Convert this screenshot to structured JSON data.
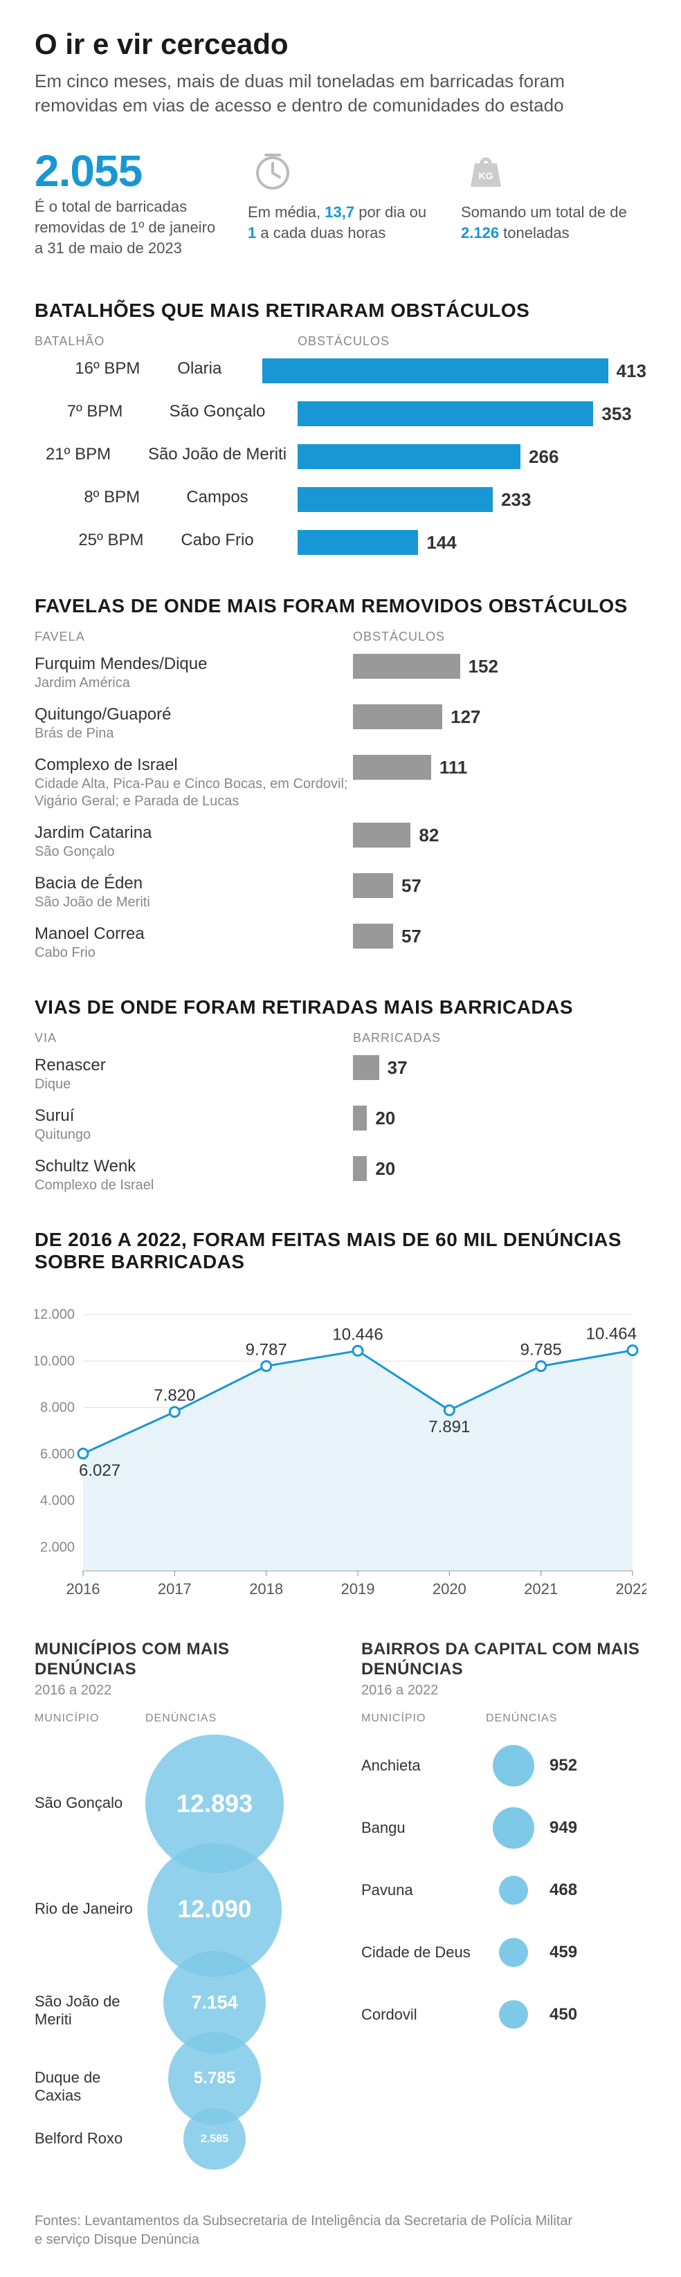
{
  "colors": {
    "accent": "#1997d4",
    "grey_bar": "#999999",
    "light_grey": "#cccccc",
    "grid": "#e0e0e0",
    "area_fill": "#e8f4fa",
    "bubble": "#7fc9e8",
    "text_muted": "#888888"
  },
  "header": {
    "title": "O ir e vir cerceado",
    "subtitle": "Em cinco meses, mais de duas mil toneladas em barricadas foram removidas em vias de acesso e dentro de comunidades do estado"
  },
  "stats": {
    "big_number": "2.055",
    "big_text": "É o total de barricadas removidas de 1º de janeiro a 31 de maio de 2023",
    "avg_pre": "Em média, ",
    "avg_v1": "13,7",
    "avg_mid1": " por dia ou ",
    "avg_v2": "1",
    "avg_mid2": " a cada duas horas",
    "weight_pre": "Somando um total de de ",
    "weight_v": "2.126",
    "weight_post": " toneladas"
  },
  "batalhoes": {
    "title": "BATALHÕES QUE MAIS RETIRARAM OBSTÁCULOS",
    "col1": "BATALHÃO",
    "col2": "OBSTÁCULOS",
    "label_width": 380,
    "bar_color": "#1997d4",
    "max": 413,
    "bar_area_width": 500,
    "rows": [
      {
        "code": "16º BPM",
        "name": "Olaria",
        "value": 413,
        "label": "413"
      },
      {
        "code": "7º BPM",
        "name": "São Gonçalo",
        "value": 353,
        "label": "353"
      },
      {
        "code": "21º BPM",
        "name": "São João de Meriti",
        "value": 266,
        "label": "266"
      },
      {
        "code": "8º BPM",
        "name": "Campos",
        "value": 233,
        "label": "233"
      },
      {
        "code": "25º BPM",
        "name": "Cabo Frio",
        "value": 144,
        "label": "144"
      }
    ]
  },
  "favelas": {
    "title": "FAVELAS DE ONDE MAIS FORAM REMOVIDOS OBSTÁCULOS",
    "col1": "FAVELA",
    "col2": "OBSTÁCULOS",
    "label_width": 460,
    "bar_color": "#999999",
    "max": 413,
    "bar_area_width": 420,
    "rows": [
      {
        "name": "Furquim Mendes/Dique",
        "sub": "Jardim América",
        "value": 152,
        "label": "152"
      },
      {
        "name": "Quitungo/Guaporé",
        "sub": "Brás de Pina",
        "value": 127,
        "label": "127"
      },
      {
        "name": "Complexo de Israel",
        "sub": "Cidade Alta, Pica-Pau e Cinco Bocas, em Cordovil; Vigário Geral; e Parada de Lucas",
        "value": 111,
        "label": "111"
      },
      {
        "name": "Jardim Catarina",
        "sub": "São Gonçalo",
        "value": 82,
        "label": "82"
      },
      {
        "name": "Bacia de Éden",
        "sub": "São João de Meriti",
        "value": 57,
        "label": "57"
      },
      {
        "name": "Manoel Correa",
        "sub": "Cabo Frio",
        "value": 57,
        "label": "57"
      }
    ]
  },
  "vias": {
    "title": "VIAS DE ONDE FORAM RETIRADAS MAIS BARRICADAS",
    "col1": "VIA",
    "col2": "BARRICADAS",
    "label_width": 460,
    "bar_color": "#999999",
    "max": 413,
    "bar_area_width": 420,
    "rows": [
      {
        "name": "Renascer",
        "sub": "Dique",
        "value": 37,
        "label": "37"
      },
      {
        "name": "Suruí",
        "sub": "Quitungo",
        "value": 20,
        "label": "20"
      },
      {
        "name": "Schultz Wenk",
        "sub": "Complexo de Israel",
        "value": 20,
        "label": "20"
      }
    ]
  },
  "line_chart": {
    "title": "DE 2016 A 2022, FORAM FEITAS MAIS DE 60 MIL DENÚNCIAS SOBRE BARRICADAS",
    "years": [
      "2016",
      "2017",
      "2018",
      "2019",
      "2020",
      "2021",
      "2022"
    ],
    "values": [
      6027,
      7820,
      9787,
      10446,
      7891,
      9785,
      10464
    ],
    "labels": [
      "6.027",
      "7.820",
      "9.787",
      "10.446",
      "7.891",
      "9.785",
      "10.464"
    ],
    "y_ticks": [
      2000,
      4000,
      6000,
      8000,
      10000,
      12000
    ],
    "y_tick_labels": [
      "2.000",
      "4.000",
      "6.000",
      "8.000",
      "10.000",
      "12.000"
    ],
    "y_min": 1000,
    "y_max": 12000,
    "line_color": "#1997d4",
    "area_color": "#e8f4fa",
    "grid_color": "#e0e0e0",
    "marker_fill": "#ffffff",
    "marker_stroke": "#1997d4",
    "line_width": 3,
    "marker_r": 7
  },
  "municipios": {
    "title": "MUNICÍPIOS COM MAIS DENÚNCIAS",
    "period": "2016 a 2022",
    "col1": "MUNICÍPIO",
    "col2": "DENÚNCIAS",
    "bubble_color": "#7fc9e8",
    "bubble_text": "#ffffff",
    "max_diameter": 200,
    "max_value": 12893,
    "rows": [
      {
        "name": "São Gonçalo",
        "value": 12893,
        "label": "12.893"
      },
      {
        "name": "Rio de Janeiro",
        "value": 12090,
        "label": "12.090"
      },
      {
        "name": "São João de Meriti",
        "value": 7154,
        "label": "7.154"
      },
      {
        "name": "Duque de Caxias",
        "value": 5785,
        "label": "5.785"
      },
      {
        "name": "Belford Roxo",
        "value": 2585,
        "label": "2.585"
      }
    ]
  },
  "bairros": {
    "title": "BAIRROS DA CAPITAL COM MAIS DENÚNCIAS",
    "period": "2016 a 2022",
    "col1": "MUNICÍPIO",
    "col2": "DENÚNCIAS",
    "bubble_color": "#7fc9e8",
    "max_diameter": 60,
    "max_value": 952,
    "rows": [
      {
        "name": "Anchieta",
        "value": 952,
        "label": "952"
      },
      {
        "name": "Bangu",
        "value": 949,
        "label": "949"
      },
      {
        "name": "Pavuna",
        "value": 468,
        "label": "468"
      },
      {
        "name": "Cidade de Deus",
        "value": 459,
        "label": "459"
      },
      {
        "name": "Cordovil",
        "value": 450,
        "label": "450"
      }
    ]
  },
  "sources": "Fontes: Levantamentos da Subsecretaria de Inteligência da Secretaria de Polícia Militar e serviço Disque Denúncia"
}
